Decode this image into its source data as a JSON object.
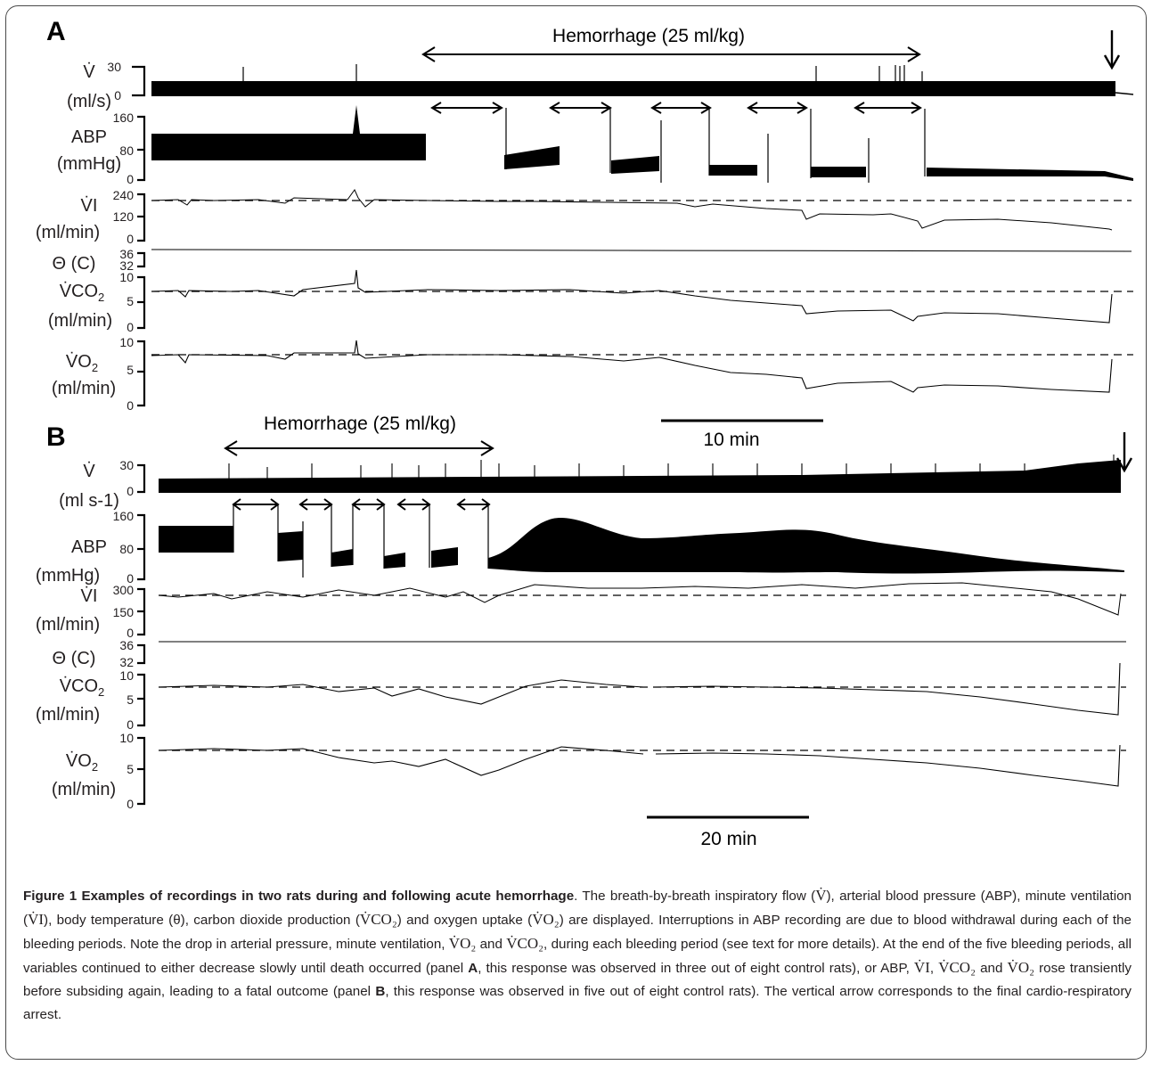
{
  "panels": [
    {
      "label": "A",
      "hemorrhage_label": "Hemorrhage (25 ml/kg)",
      "scale_bar": "10 min",
      "y_axes": [
        {
          "label_main": "V̇",
          "label_unit": "(ml/s)",
          "ticks": [
            "30",
            "0"
          ]
        },
        {
          "label_main": "ABP",
          "label_unit": "(mmHg)",
          "ticks": [
            "160",
            "80",
            "0"
          ]
        },
        {
          "label_main": "V̇I",
          "label_unit": "(ml/min)",
          "ticks": [
            "240",
            "120",
            "0"
          ]
        },
        {
          "label_main": "Θ (C)",
          "ticks": [
            "36",
            "32"
          ]
        },
        {
          "label_main": "V̇CO",
          "label_sub": "2",
          "label_unit": "(ml/min)",
          "ticks": [
            "10",
            "5",
            "0"
          ]
        },
        {
          "label_main": "V̇O",
          "label_sub": "2",
          "label_unit": "(ml/min)",
          "ticks": [
            "10",
            "5",
            "0"
          ]
        }
      ]
    },
    {
      "label": "B",
      "hemorrhage_label": "Hemorrhage (25 ml/kg)",
      "scale_bar": "20 min",
      "y_axes": [
        {
          "label_main": "V̇",
          "label_unit": "(ml s-1)",
          "ticks": [
            "30",
            "0"
          ]
        },
        {
          "label_main": "ABP",
          "label_unit": "(mmHg)",
          "ticks": [
            "160",
            "80",
            "0"
          ]
        },
        {
          "label_main": "V̇I",
          "label_unit": "(ml/min)",
          "ticks": [
            "300",
            "150",
            "0"
          ]
        },
        {
          "label_main": "Θ (C)",
          "ticks": [
            "36",
            "32"
          ]
        },
        {
          "label_main": "V̇CO",
          "label_sub": "2",
          "label_unit": "(ml/min)",
          "ticks": [
            "10",
            "5",
            "0"
          ]
        },
        {
          "label_main": "V̇O",
          "label_sub": "2",
          "label_unit": "(ml/min)",
          "ticks": [
            "10",
            "5",
            "0"
          ]
        }
      ]
    }
  ],
  "caption": {
    "title": "Figure 1 Examples of recordings in two rats during and following acute hemorrhage",
    "body": [
      ". The breath-by-breath inspiratory flow (",
      "V̇",
      "), arterial blood pressure (ABP), minute ventilation (",
      "V̇I",
      "), body temperature (θ), carbon dioxide production (",
      "V̇CO₂",
      ") and oxygen uptake (",
      "V̇O₂",
      ") are displayed. Interruptions in ABP recording are due to blood withdrawal during each of the bleeding periods. Note the drop in arterial pressure, minute ventilation, ",
      "V̇O₂",
      " and ",
      "V̇CO₂",
      ", during each bleeding period (see text for more details). At the end of the five bleeding periods, all variables continued to either decrease slowly until death occurred (panel ",
      "A",
      ", this response was observed in three out of eight control rats), or ABP, ",
      "V̇I",
      ", ",
      "V̇CO₂",
      " and ",
      "V̇O₂",
      " rose transiently before subsiding again, leading to a fatal outcome (panel ",
      "B",
      ", this response was observed in five out of eight control rats). The vertical arrow corresponds to the final cardio-respiratory arrest."
    ]
  },
  "colors": {
    "ink": "#231f20",
    "trace": "#000000",
    "frame": "#4a4a4a"
  }
}
